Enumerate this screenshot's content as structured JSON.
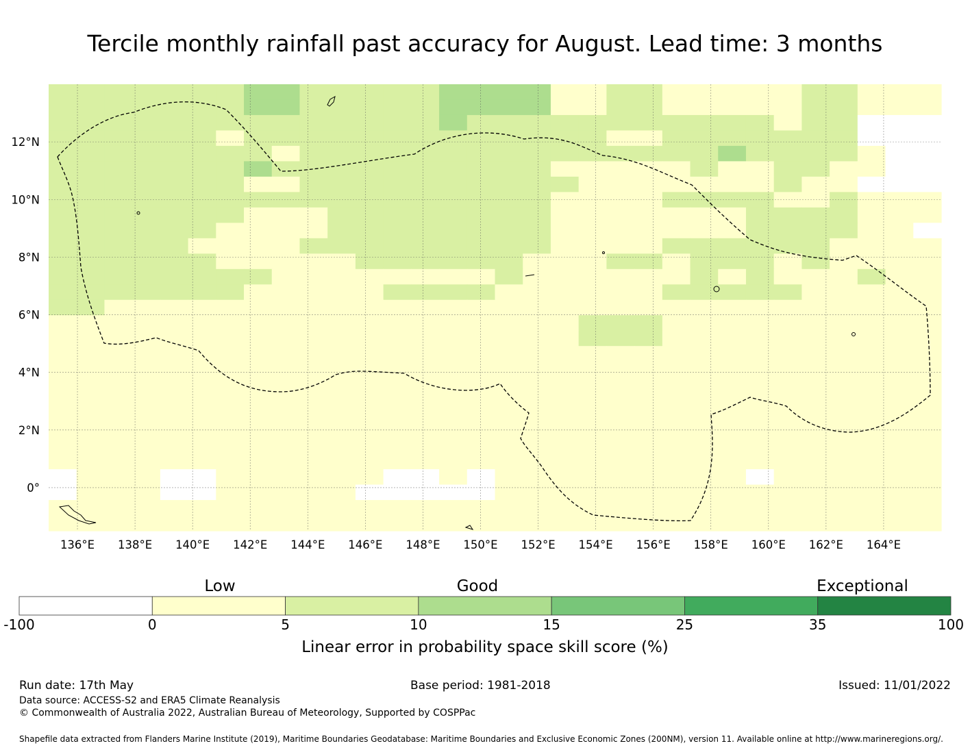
{
  "title": "Tercile monthly rainfall past accuracy for August. Lead time: 3 months",
  "map": {
    "lon_range": [
      135,
      166
    ],
    "lat_range": [
      -1.5,
      14
    ],
    "lon_ticks": [
      "136°E",
      "138°E",
      "140°E",
      "142°E",
      "144°E",
      "146°E",
      "148°E",
      "150°E",
      "152°E",
      "154°E",
      "156°E",
      "158°E",
      "160°E",
      "162°E",
      "164°E"
    ],
    "lat_ticks": [
      "12°N",
      "10°N",
      "8°N",
      "6°N",
      "4°N",
      "2°N",
      "0°"
    ],
    "grid_lines": true,
    "grid_levels": [
      "22222223322222333311221111122111",
      "22222223322222333311221111122111",
      "22222222222222322222222222122000",
      "22222212222222222222112222222000",
      "22222222122222222222222232222100",
      "22222223222222222211111211221100",
      "22222221122222222221111111211000",
      "22222222222222222211112222112111",
      "22222221112222222211111112222111",
      "22222211112222222211111112222110",
      "22222111122222222211112222221111",
      "22222211111222222111221222121111",
      "22222222111111112111111212111211",
      "22222221111122221111112222211111",
      "22111111111111111111111111111111",
      "11111111111111111112221111111111",
      "11111111111111111112221111111111",
      "11111111111111111111111111111111",
      "11111111111111111111111111111111",
      "11111111111111111111111111111111",
      "11111111111111111111111111111111",
      "11111111111111111111111111111111",
      "11111111111111111111111111111111",
      "11111111111111111111111111111111",
      "11111111111111111111111111111111",
      "01110011111100101111111110111111",
      "01110011111000001111111111111111",
      "11111111111111111111111111111111",
      "11111111111111111111111111111111"
    ]
  },
  "colorbar": {
    "categories": [
      "Low",
      "Good",
      "Exceptional"
    ],
    "boundaries": [
      "-100",
      "0",
      "5",
      "10",
      "15",
      "25",
      "35",
      "100"
    ],
    "colors": [
      "#ffffff",
      "#ffffcc",
      "#d9f0a3",
      "#addd8e",
      "#78c679",
      "#41ab5d",
      "#238443"
    ],
    "axis_label": "Linear error in probability space skill score (%)"
  },
  "footer": {
    "run_date": "Run date: 17th May",
    "base_period": "Base period: 1981-2018",
    "issued": "Issued: 11/01/2022",
    "data_source": "Data source: ACCESS-S2 and ERA5 Climate Reanalysis",
    "copyright": "© Commonwealth of Australia 2022, Australian Bureau of Meteorology, Supported by COSPPac",
    "shapefile": "Shapefile data extracted from Flanders Marine Institute (2019), Maritime Boundaries Geodatabase: Maritime Boundaries and Exclusive Economic Zones (200NM), version 11. Available online at http://www.marineregions.org/."
  }
}
